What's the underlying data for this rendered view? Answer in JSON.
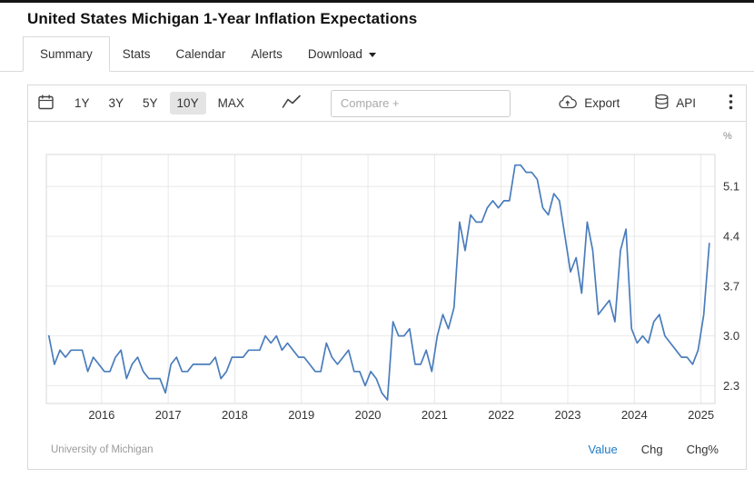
{
  "page": {
    "title": "United States Michigan 1-Year Inflation Expectations"
  },
  "tabs": {
    "items": [
      {
        "label": "Summary",
        "active": true
      },
      {
        "label": "Stats"
      },
      {
        "label": "Calendar"
      },
      {
        "label": "Alerts"
      },
      {
        "label": "Download"
      }
    ]
  },
  "toolbar": {
    "ranges": [
      "1Y",
      "3Y",
      "5Y",
      "10Y",
      "MAX"
    ],
    "selected_range": "10Y",
    "compare_placeholder": "Compare +",
    "export_label": "Export",
    "api_label": "API"
  },
  "footer": {
    "source": "University of Michigan",
    "legend": [
      {
        "label": "Value",
        "active": true,
        "color": "#1f7cc7"
      },
      {
        "label": "Chg",
        "active": false
      },
      {
        "label": "Chg%",
        "active": false
      }
    ]
  },
  "chart_data": {
    "type": "line",
    "title": "United States Michigan 1-Year Inflation Expectations",
    "unit": "%",
    "series_name": "Value",
    "line_color": "#4a7dbc",
    "grid": true,
    "legend_position": "bottom-right",
    "source": "University of Michigan",
    "x_start": 2015.2083,
    "x_step": 0.0833333,
    "x_ticks": [
      2016,
      2017,
      2018,
      2019,
      2020,
      2021,
      2022,
      2023,
      2024,
      2025
    ],
    "y_ticks": [
      5.1,
      4.4,
      3.7,
      3.0,
      2.3
    ],
    "x_domain": [
      2015.17,
      2025.21
    ],
    "y_domain": [
      2.05,
      5.55
    ],
    "values": [
      3.0,
      2.6,
      2.8,
      2.7,
      2.8,
      2.8,
      2.8,
      2.5,
      2.7,
      2.6,
      2.5,
      2.5,
      2.7,
      2.8,
      2.4,
      2.6,
      2.7,
      2.5,
      2.4,
      2.4,
      2.4,
      2.2,
      2.6,
      2.7,
      2.5,
      2.5,
      2.6,
      2.6,
      2.6,
      2.6,
      2.7,
      2.4,
      2.5,
      2.7,
      2.7,
      2.7,
      2.8,
      2.8,
      2.8,
      3.0,
      2.9,
      3.0,
      2.8,
      2.9,
      2.8,
      2.7,
      2.7,
      2.6,
      2.5,
      2.5,
      2.9,
      2.7,
      2.6,
      2.7,
      2.8,
      2.5,
      2.5,
      2.3,
      2.5,
      2.4,
      2.2,
      2.1,
      3.2,
      3.0,
      3.0,
      3.1,
      2.6,
      2.6,
      2.8,
      2.5,
      3.0,
      3.3,
      3.1,
      3.4,
      4.6,
      4.2,
      4.7,
      4.6,
      4.6,
      4.8,
      4.9,
      4.8,
      4.9,
      4.9,
      5.4,
      5.4,
      5.3,
      5.3,
      5.2,
      4.8,
      4.7,
      5.0,
      4.9,
      4.4,
      3.9,
      4.1,
      3.6,
      4.6,
      4.2,
      3.3,
      3.4,
      3.5,
      3.2,
      4.2,
      4.5,
      3.1,
      2.9,
      3.0,
      2.9,
      3.2,
      3.3,
      3.0,
      2.9,
      2.8,
      2.7,
      2.7,
      2.6,
      2.8,
      3.3,
      4.3
    ]
  }
}
